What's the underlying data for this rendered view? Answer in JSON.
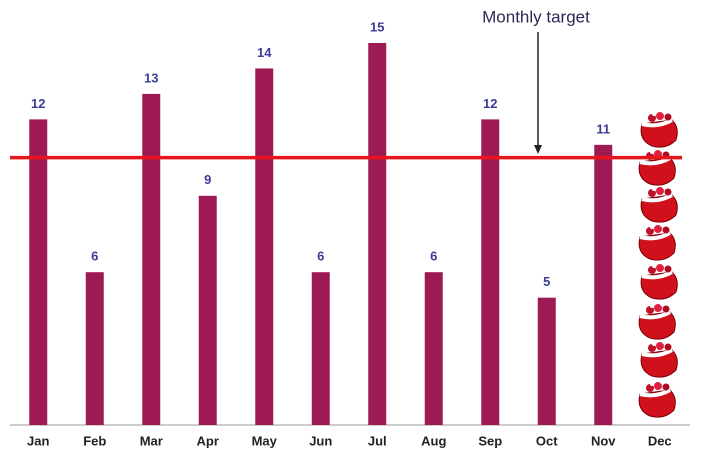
{
  "chart_data": {
    "type": "bar",
    "categories": [
      "Jan",
      "Feb",
      "Mar",
      "Apr",
      "May",
      "Jun",
      "Jul",
      "Aug",
      "Sep",
      "Oct",
      "Nov",
      "Dec"
    ],
    "values": [
      12,
      6,
      13,
      9,
      14,
      6,
      15,
      6,
      12,
      5,
      11,
      null
    ],
    "color": "#9e1a55",
    "ylim": [
      0,
      16
    ],
    "target": 10.5,
    "target_color": "#e8141b",
    "annotation": "Monthly target"
  }
}
